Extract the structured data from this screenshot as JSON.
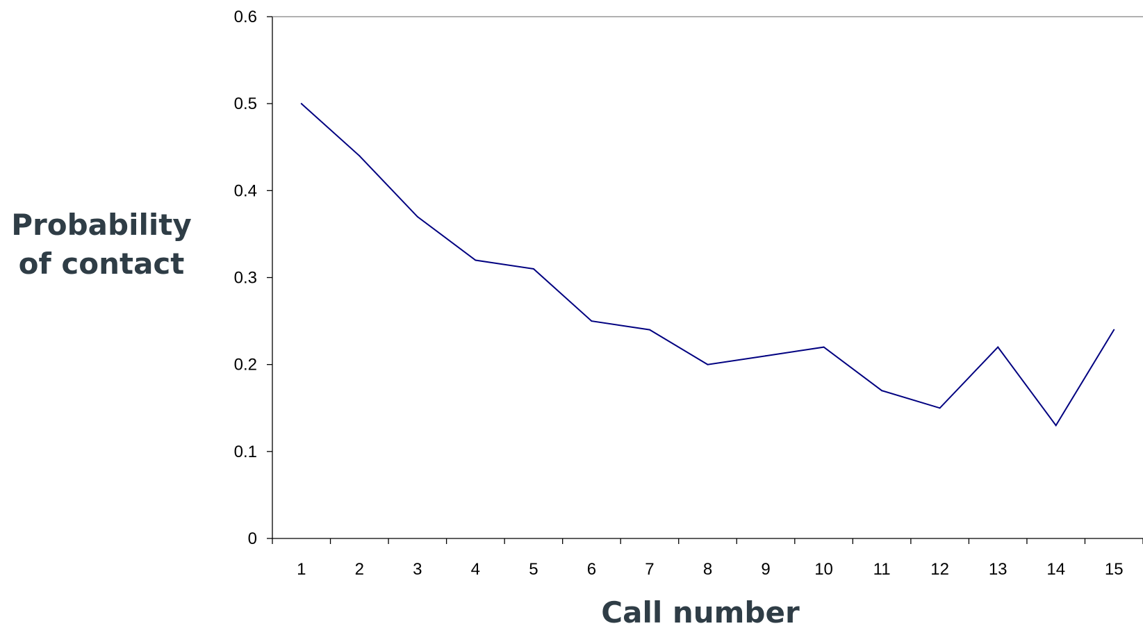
{
  "chart_data": {
    "type": "line",
    "title": "",
    "xlabel": "Call number",
    "ylabel_lines": [
      "Probability",
      "of contact"
    ],
    "categories": [
      "1",
      "2",
      "3",
      "4",
      "5",
      "6",
      "7",
      "8",
      "9",
      "10",
      "11",
      "12",
      "13",
      "14",
      "15"
    ],
    "series": [
      {
        "values": [
          0.5,
          0.44,
          0.37,
          0.32,
          0.31,
          0.25,
          0.24,
          0.2,
          0.21,
          0.22,
          0.17,
          0.15,
          0.22,
          0.13,
          0.24
        ],
        "color": "#000080"
      }
    ],
    "ylim": [
      0,
      0.6
    ],
    "yticks": [
      0,
      0.1,
      0.2,
      0.3,
      0.4,
      0.5,
      0.6
    ],
    "ytick_labels": [
      "0",
      "0.1",
      "0.2",
      "0.3",
      "0.4",
      "0.5",
      "0.6"
    ],
    "grid": false,
    "legend": "none"
  }
}
